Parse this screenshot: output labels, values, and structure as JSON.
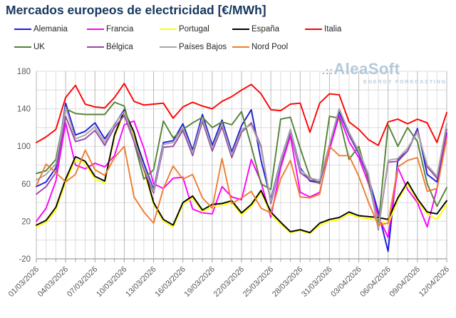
{
  "title": "Mercados europeos de electricidad [€/MWh]",
  "watermark": {
    "prefix": ".::",
    "brand": "AleaSoft",
    "tagline": "ENERGY FORECASTING"
  },
  "chart_data": {
    "type": "line",
    "x": [
      "01/03/2026",
      "02/03/2026",
      "03/03/2026",
      "04/03/2026",
      "05/03/2026",
      "06/03/2026",
      "07/03/2026",
      "08/03/2026",
      "09/03/2026",
      "10/03/2026",
      "11/03/2026",
      "12/03/2026",
      "13/03/2026",
      "14/03/2026",
      "15/03/2026",
      "16/03/2026",
      "17/03/2026",
      "18/03/2026",
      "19/03/2026",
      "20/03/2026",
      "21/03/2026",
      "22/03/2026",
      "23/03/2026",
      "24/03/2026",
      "25/03/2026",
      "26/03/2026",
      "27/03/2026",
      "28/03/2026",
      "29/03/2026",
      "30/03/2026",
      "31/03/2026",
      "01/04/2026",
      "02/04/2026",
      "03/04/2026",
      "04/04/2026",
      "05/04/2026",
      "06/04/2026",
      "07/04/2026",
      "08/04/2026",
      "09/04/2026",
      "10/04/2026",
      "11/04/2026",
      "12/04/2026"
    ],
    "x_tick_every": 3,
    "ylim": [
      -20,
      180
    ],
    "y_grid_step": 20,
    "y_ticks_labeled": [
      -20,
      20,
      60,
      100,
      140,
      180
    ],
    "grid": true,
    "legend_position": "top",
    "series": [
      {
        "name": "Alemania",
        "color": "#1c1cdd",
        "values": [
          57,
          62,
          77,
          146,
          112,
          116,
          125,
          108,
          123,
          139,
          112,
          82,
          54,
          104,
          106,
          124,
          96,
          134,
          101,
          128,
          94,
          122,
          139,
          85,
          43,
          85,
          118,
          77,
          63,
          61,
          100,
          137,
          112,
          92,
          66,
          30,
          -12,
          86,
          95,
          119,
          70,
          62,
          114
        ]
      },
      {
        "name": "Francia",
        "color": "#ff00ff",
        "values": [
          20,
          34,
          63,
          125,
          80,
          76,
          82,
          78,
          90,
          123,
          127,
          98,
          60,
          55,
          66,
          67,
          33,
          29,
          28,
          57,
          46,
          43,
          86,
          62,
          24,
          77,
          111,
          51,
          46,
          51,
          96,
          133,
          105,
          88,
          60,
          25,
          3,
          77,
          54,
          40,
          14,
          55,
          111
        ]
      },
      {
        "name": "Portugal",
        "color": "#ffff00",
        "values": [
          14,
          19,
          32,
          62,
          86,
          82,
          65,
          61,
          110,
          136,
          112,
          74,
          38,
          20,
          14,
          38,
          45,
          30,
          36,
          37,
          40,
          27,
          36,
          51,
          28,
          17,
          8,
          10,
          7,
          16,
          20,
          22,
          28,
          24,
          23,
          21,
          17,
          43,
          60,
          42,
          28,
          22,
          38
        ]
      },
      {
        "name": "España",
        "color": "#000000",
        "values": [
          16,
          21,
          35,
          65,
          89,
          84,
          68,
          63,
          112,
          138,
          115,
          77,
          40,
          22,
          16,
          40,
          47,
          32,
          38,
          39,
          42,
          29,
          38,
          53,
          30,
          19,
          9,
          11,
          8,
          18,
          22,
          24,
          30,
          26,
          25,
          24,
          22,
          45,
          62,
          44,
          30,
          28,
          42
        ]
      },
      {
        "name": "Italia",
        "color": "#ff0000",
        "values": [
          104,
          110,
          118,
          152,
          165,
          145,
          142,
          141,
          152,
          167,
          148,
          144,
          145,
          146,
          130,
          142,
          147,
          143,
          140,
          148,
          153,
          160,
          166,
          156,
          139,
          138,
          145,
          146,
          115,
          146,
          156,
          155,
          126,
          118,
          107,
          101,
          126,
          129,
          124,
          129,
          125,
          104,
          136
        ]
      },
      {
        "name": "UK",
        "color": "#548235",
        "values": [
          71,
          74,
          86,
          140,
          135,
          134,
          134,
          134,
          147,
          143,
          105,
          65,
          75,
          127,
          109,
          118,
          125,
          131,
          120,
          126,
          123,
          137,
          100,
          60,
          54,
          129,
          131,
          98,
          67,
          60,
          132,
          130,
          86,
          100,
          63,
          16,
          123,
          100,
          120,
          105,
          60,
          36,
          56
        ]
      },
      {
        "name": "Bélgica",
        "color": "#9a44a8",
        "values": [
          49,
          57,
          72,
          132,
          105,
          108,
          117,
          101,
          120,
          133,
          105,
          75,
          50,
          99,
          100,
          117,
          90,
          127,
          95,
          121,
          88,
          115,
          125,
          100,
          39,
          81,
          115,
          72,
          64,
          62,
          101,
          140,
          113,
          93,
          68,
          11,
          83,
          84,
          95,
          117,
          78,
          66,
          118
        ]
      },
      {
        "name": "Países Bajos",
        "color": "#a6a6a6",
        "values": [
          64,
          70,
          81,
          142,
          108,
          112,
          121,
          104,
          124,
          137,
          108,
          78,
          52,
          102,
          104,
          120,
          93,
          130,
          98,
          124,
          91,
          118,
          123,
          98,
          41,
          84,
          118,
          75,
          66,
          64,
          102,
          140,
          115,
          95,
          70,
          12,
          85,
          87,
          98,
          115,
          80,
          68,
          124
        ]
      },
      {
        "name": "Nord Pool",
        "color": "#ed7d31",
        "values": [
          58,
          81,
          72,
          62,
          70,
          96,
          75,
          69,
          88,
          100,
          46,
          30,
          18,
          55,
          79,
          65,
          70,
          45,
          34,
          87,
          39,
          45,
          52,
          34,
          29,
          65,
          85,
          46,
          45,
          49,
          100,
          90,
          90,
          68,
          40,
          16,
          18,
          78,
          85,
          88,
          52,
          55,
          108
        ]
      }
    ]
  },
  "colors": {
    "title": "#17375e",
    "grid_minor": "#dcdcdc",
    "grid_major": "#b8b8b8",
    "axis": "#9e9e9e",
    "tick_text": "#595959"
  }
}
